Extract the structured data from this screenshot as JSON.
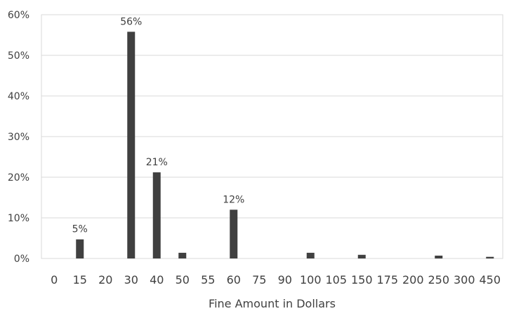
{
  "chart_data": {
    "type": "bar",
    "categories": [
      "0",
      "15",
      "20",
      "30",
      "40",
      "50",
      "55",
      "60",
      "75",
      "90",
      "100",
      "105",
      "150",
      "175",
      "200",
      "250",
      "300",
      "450"
    ],
    "series": [
      {
        "values": [
          0,
          4.7,
          0,
          55.8,
          21.2,
          1.4,
          0,
          12.0,
          0,
          0,
          1.4,
          0,
          0.9,
          0,
          0,
          0.7,
          0,
          0.4
        ]
      }
    ],
    "data_labels": [
      {
        "index": 1,
        "text": "5%"
      },
      {
        "index": 3,
        "text": "56%"
      },
      {
        "index": 4,
        "text": "21%"
      },
      {
        "index": 7,
        "text": "12%"
      }
    ],
    "ylim": [
      0,
      60
    ],
    "yticks": [
      {
        "value": 0,
        "label": "0%"
      },
      {
        "value": 10,
        "label": "10%"
      },
      {
        "value": 20,
        "label": "20%"
      },
      {
        "value": 30,
        "label": "30%"
      },
      {
        "value": 40,
        "label": "40%"
      },
      {
        "value": 50,
        "label": "50%"
      },
      {
        "value": 60,
        "label": "60%"
      }
    ],
    "xlabel": "Fine Amount in Dollars",
    "ylabel": "",
    "title": "",
    "grid": true,
    "bar_color": "#404040"
  }
}
